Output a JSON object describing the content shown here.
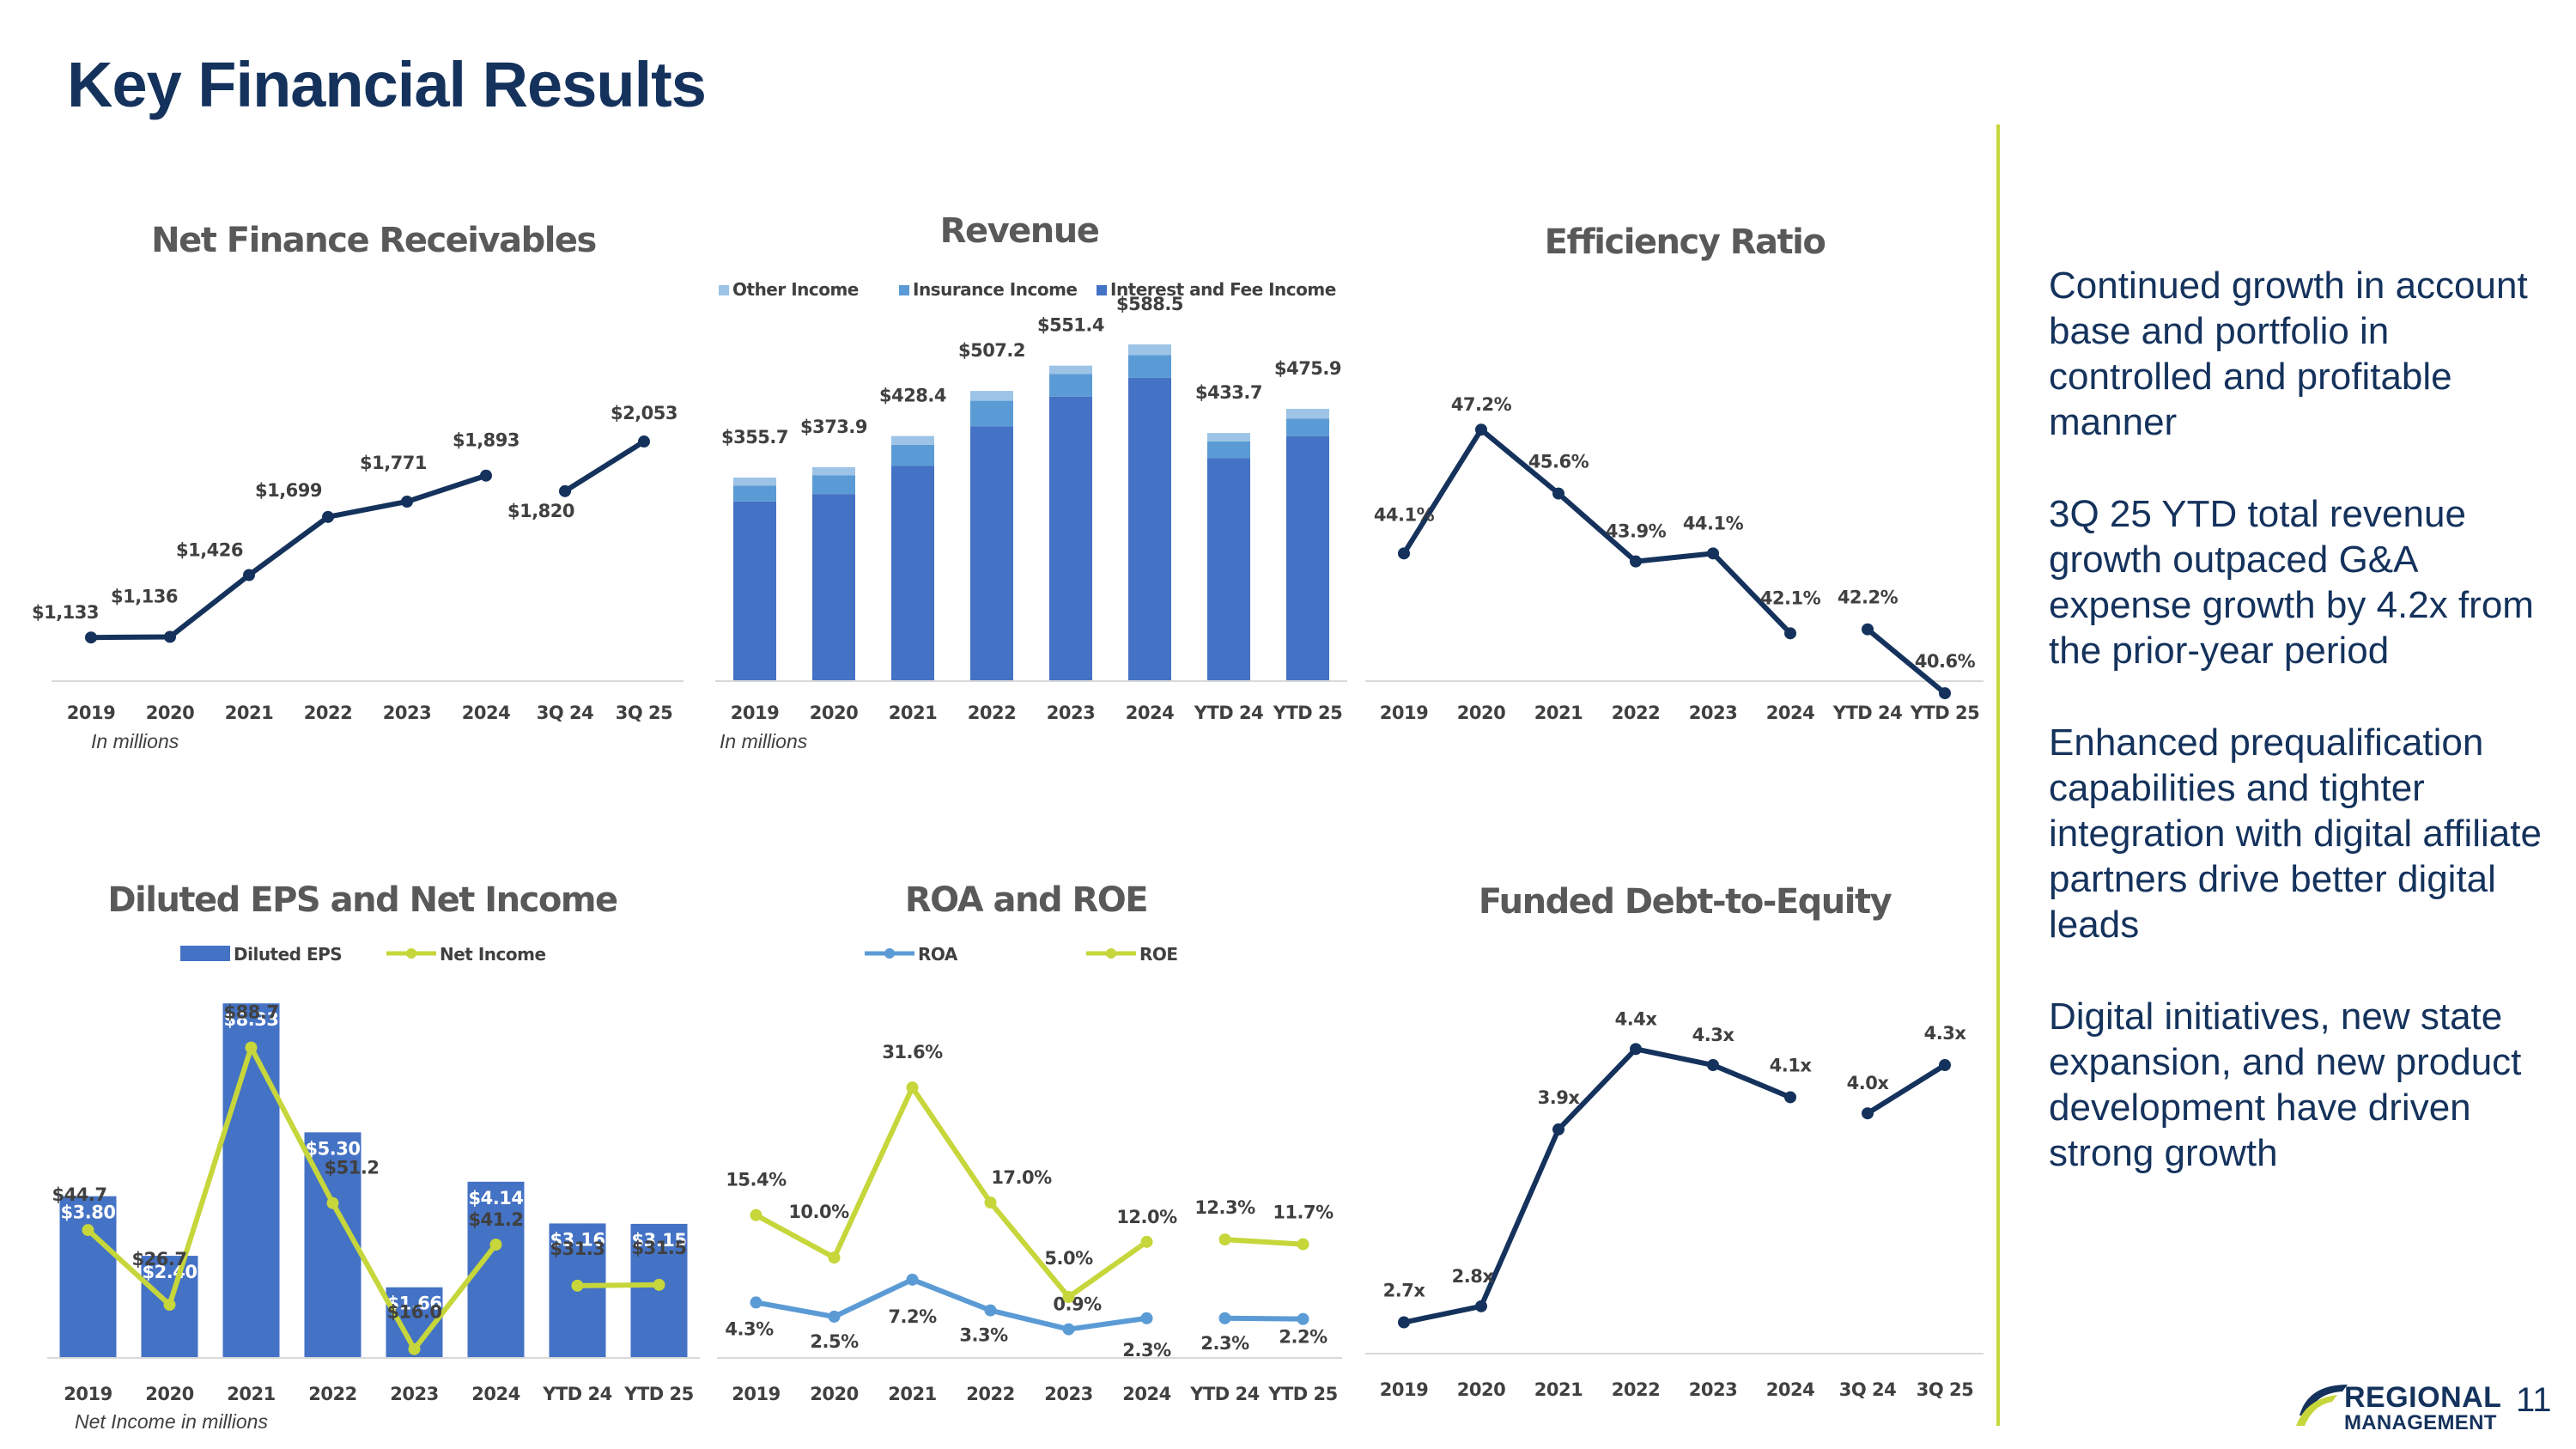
{
  "page": {
    "title": "Key Financial Results",
    "page_number": "11",
    "logo": {
      "line1": "REGIONAL",
      "line2": "MANAGEMENT",
      "colors": [
        "#14325c",
        "#c6d63b"
      ]
    },
    "notes": {
      "nfr": "In millions",
      "revenue": "In millions",
      "eps": "Net Income in millions"
    },
    "bullets": [
      "Continued growth in account base and portfolio in controlled and profitable manner",
      "3Q 25 YTD total revenue growth outpaced G&A expense growth by 4.2x from the prior-year period",
      "Enhanced prequalification capabilities and tighter integration with digital affiliate partners drive better digital leads",
      "Digital initiatives, new state expansion, and new product development have driven strong growth"
    ],
    "colors": {
      "title": "#14325c",
      "navy_line": "#14325c",
      "bar_blue": "#4472c4",
      "mid_blue": "#5b9bd5",
      "light_blue": "#9dc3e6",
      "lime": "#c6d63b",
      "roa_blue": "#5b9bd5",
      "text": "#404040"
    }
  },
  "chart_data": [
    {
      "id": "nfr",
      "type": "line",
      "title": "Net Finance Receivables",
      "categories": [
        "2019",
        "2020",
        "2021",
        "2022",
        "2023",
        "2024",
        "3Q 24",
        "3Q 25"
      ],
      "series": [
        {
          "values": [
            1133,
            1136,
            1426,
            1699,
            1771,
            1893,
            1820,
            2053
          ],
          "labels": [
            "$1,133",
            "$1,136",
            "$1,426",
            "$1,699",
            "$1,771",
            "$1,893",
            "$1,820",
            "$2,053"
          ]
        }
      ],
      "line_break_after_index": 5,
      "ylim": [
        900,
        2150
      ],
      "grid": false
    },
    {
      "id": "revenue",
      "type": "bar",
      "stacked": true,
      "title": "Revenue",
      "categories": [
        "2019",
        "2020",
        "2021",
        "2022",
        "2023",
        "2024",
        "YTD 24",
        "YTD 25"
      ],
      "series": [
        {
          "name": "Interest and Fee Income",
          "values": [
            314,
            327,
            376,
            445,
            497,
            530,
            390,
            428
          ]
        },
        {
          "name": "Insurance Income",
          "values": [
            28,
            33,
            37,
            45,
            40,
            40,
            29,
            31
          ]
        },
        {
          "name": "Other Income",
          "values": [
            13.7,
            13.9,
            15.4,
            17.2,
            14.4,
            18.5,
            14.7,
            16.9
          ]
        }
      ],
      "totals": [
        "$355.7",
        "$373.9",
        "$428.4",
        "$507.2",
        "$551.4",
        "$588.5",
        "$433.7",
        "$475.9"
      ],
      "legend_order": [
        "Other Income",
        "Insurance Income",
        "Interest and Fee Income"
      ],
      "ylim": [
        0,
        650
      ],
      "legend": "top",
      "grid": false
    },
    {
      "id": "eff",
      "type": "line",
      "title": "Efficiency Ratio",
      "categories": [
        "2019",
        "2020",
        "2021",
        "2022",
        "2023",
        "2024",
        "YTD 24",
        "YTD 25"
      ],
      "series": [
        {
          "values": [
            44.1,
            47.2,
            45.6,
            43.9,
            44.1,
            42.1,
            42.2,
            40.6
          ],
          "labels": [
            "44.1%",
            "47.2%",
            "45.6%",
            "43.9%",
            "44.1%",
            "42.1%",
            "42.2%",
            "40.6%"
          ]
        }
      ],
      "line_break_after_index": 5,
      "ylim": [
        30,
        50
      ],
      "grid": false
    },
    {
      "id": "eps",
      "type": "bar",
      "title": "Diluted EPS and Net Income",
      "categories": [
        "2019",
        "2020",
        "2021",
        "2022",
        "2023",
        "2024",
        "YTD 24",
        "YTD 25"
      ],
      "series": [
        {
          "name": "Diluted EPS",
          "type": "bar",
          "values": [
            3.8,
            2.4,
            8.33,
            5.3,
            1.66,
            4.14,
            3.16,
            3.15
          ],
          "labels": [
            "$3.80",
            "$2.40",
            "$8.33",
            "$5.30",
            "$1.66",
            "$4.14",
            "$3.16",
            "$3.15"
          ]
        },
        {
          "name": "Net Income",
          "type": "line",
          "values": [
            44.7,
            26.7,
            88.7,
            51.2,
            16.0,
            41.2,
            31.3,
            31.5
          ],
          "labels": [
            "$44.7",
            "$26.7",
            "$88.7",
            "$51.2",
            "$16.0",
            "$41.2",
            "$31.3",
            "$31.5"
          ]
        }
      ],
      "line_break_after_index": 5,
      "ylim_bar": [
        0,
        9
      ],
      "ylim_line": [
        0,
        100
      ],
      "legend": "top",
      "grid": false
    },
    {
      "id": "roa",
      "type": "line",
      "title": "ROA and ROE",
      "categories": [
        "2019",
        "2020",
        "2021",
        "2022",
        "2023",
        "2024",
        "YTD 24",
        "YTD 25"
      ],
      "series": [
        {
          "name": "ROA",
          "values": [
            4.3,
            2.5,
            7.2,
            3.3,
            0.9,
            2.3,
            2.3,
            2.2
          ],
          "labels": [
            "4.3%",
            "2.5%",
            "7.2%",
            "3.3%",
            "0.9%",
            "2.3%",
            "2.3%",
            "2.2%"
          ]
        },
        {
          "name": "ROE",
          "values": [
            15.4,
            10.0,
            31.6,
            17.0,
            5.0,
            12.0,
            12.3,
            11.7
          ],
          "labels": [
            "15.4%",
            "10.0%",
            "31.6%",
            "17.0%",
            "5.0%",
            "12.0%",
            "12.3%",
            "11.7%"
          ]
        }
      ],
      "line_break_after_index": 5,
      "ylim": [
        -1,
        35
      ],
      "legend": "top",
      "grid": false
    },
    {
      "id": "debt",
      "type": "line",
      "title": "Funded Debt-to-Equity",
      "categories": [
        "2019",
        "2020",
        "2021",
        "2022",
        "2023",
        "2024",
        "3Q 24",
        "3Q 25"
      ],
      "series": [
        {
          "values": [
            2.7,
            2.8,
            3.9,
            4.4,
            4.3,
            4.1,
            4.0,
            4.3
          ],
          "labels": [
            "2.7x",
            "2.8x",
            "3.9x",
            "4.4x",
            "4.3x",
            "4.1x",
            "4.0x",
            "4.3x"
          ]
        }
      ],
      "line_break_after_index": 5,
      "ylim": [
        0,
        5
      ],
      "grid": false
    }
  ]
}
